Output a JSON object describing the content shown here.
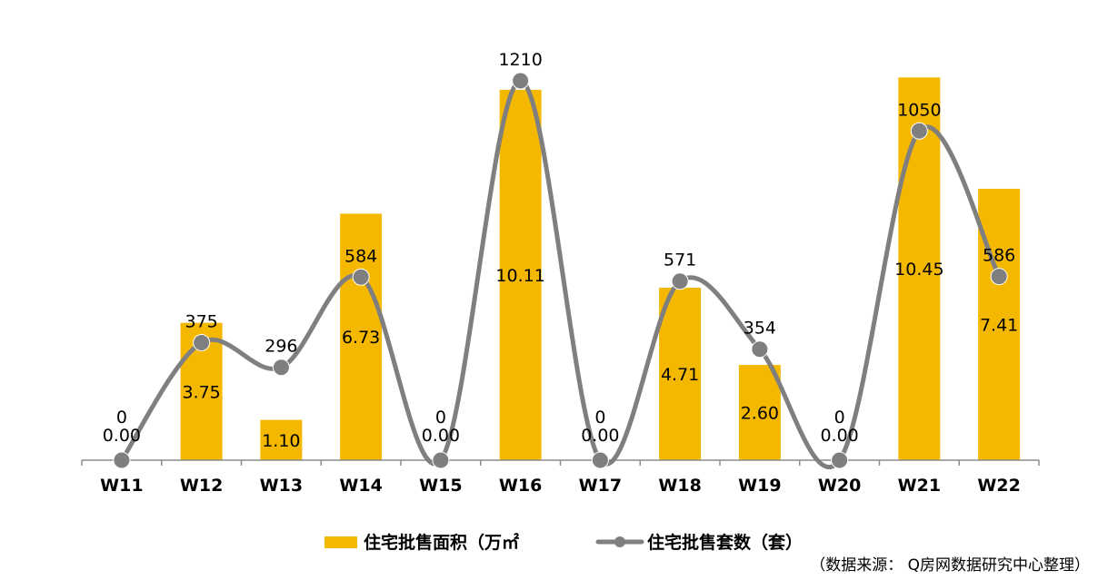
{
  "chart_data": {
    "type": "bar",
    "categories": [
      "W11",
      "W12",
      "W13",
      "W14",
      "W15",
      "W16",
      "W17",
      "W18",
      "W19",
      "W20",
      "W21",
      "W22"
    ],
    "series": [
      {
        "name": "住宅批售面积（万㎡",
        "kind": "bar",
        "values": [
          0.0,
          3.75,
          1.1,
          6.73,
          0.0,
          10.11,
          0.0,
          4.71,
          2.6,
          0.0,
          10.45,
          7.41
        ],
        "labels": [
          "0.00",
          "3.75",
          "1.10",
          "6.73",
          "0.00",
          "10.11",
          "0.00",
          "4.71",
          "2.60",
          "0.00",
          "10.45",
          "7.41"
        ],
        "color": "#F5B800"
      },
      {
        "name": "住宅批售套数（套）",
        "kind": "smooth-line",
        "values": [
          0,
          375,
          296,
          584,
          0,
          1210,
          0,
          571,
          354,
          0,
          1050,
          586
        ],
        "labels": [
          "0",
          "375",
          "296",
          "584",
          "0",
          "1210",
          "0",
          "571",
          "354",
          "0",
          "1050",
          "586"
        ],
        "color": "#7F7F7F"
      }
    ],
    "bar_axis_range": [
      0,
      12
    ],
    "line_axis_range": [
      0,
      1250
    ],
    "gridlines": false,
    "legend_position": "bottom",
    "source_note": "（数据来源： Q房网数据研究中心整理）"
  }
}
